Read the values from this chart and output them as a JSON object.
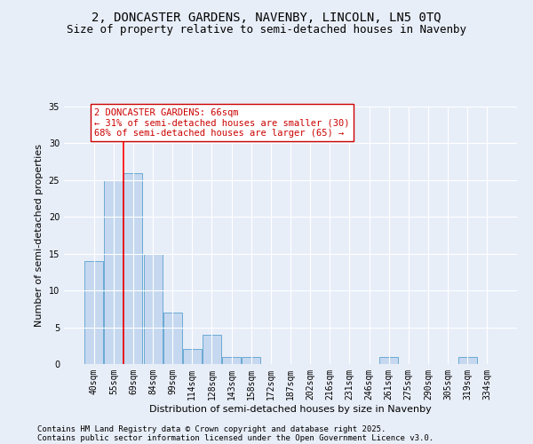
{
  "title": "2, DONCASTER GARDENS, NAVENBY, LINCOLN, LN5 0TQ",
  "subtitle": "Size of property relative to semi-detached houses in Navenby",
  "xlabel": "Distribution of semi-detached houses by size in Navenby",
  "ylabel": "Number of semi-detached properties",
  "categories": [
    "40sqm",
    "55sqm",
    "69sqm",
    "84sqm",
    "99sqm",
    "114sqm",
    "128sqm",
    "143sqm",
    "158sqm",
    "172sqm",
    "187sqm",
    "202sqm",
    "216sqm",
    "231sqm",
    "246sqm",
    "261sqm",
    "275sqm",
    "290sqm",
    "305sqm",
    "319sqm",
    "334sqm"
  ],
  "values": [
    14,
    25,
    26,
    15,
    7,
    2,
    4,
    1,
    1,
    0,
    0,
    0,
    0,
    0,
    0,
    1,
    0,
    0,
    0,
    1,
    0
  ],
  "bar_color": "#c5d8f0",
  "bar_edge_color": "#6aaad4",
  "background_color": "#e8eef8",
  "grid_color": "#ffffff",
  "red_line_x": 1.5,
  "annotation_text": "2 DONCASTER GARDENS: 66sqm\n← 31% of semi-detached houses are smaller (30)\n68% of semi-detached houses are larger (65) →",
  "annotation_box_color": "#ffffff",
  "annotation_text_color": "#cc0000",
  "ylim": [
    0,
    35
  ],
  "yticks": [
    0,
    5,
    10,
    15,
    20,
    25,
    30,
    35
  ],
  "footer_line1": "Contains HM Land Registry data © Crown copyright and database right 2025.",
  "footer_line2": "Contains public sector information licensed under the Open Government Licence v3.0.",
  "title_fontsize": 10,
  "subtitle_fontsize": 9,
  "axis_label_fontsize": 8,
  "tick_fontsize": 7,
  "annotation_fontsize": 7.5,
  "footer_fontsize": 6.5
}
